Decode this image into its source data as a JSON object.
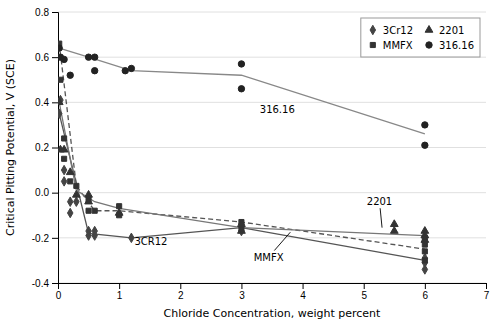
{
  "chart_data": {
    "type": "scatter",
    "xlabel": "Chloride Concentration, weight percent",
    "ylabel": "Critical Pitting Potential, V (SCE)",
    "xlim": [
      0,
      7
    ],
    "ylim": [
      -0.4,
      0.8
    ],
    "xticks": [
      0,
      1,
      2,
      3,
      4,
      5,
      6,
      7
    ],
    "yticks": [
      -0.4,
      -0.2,
      {
        "value": 0,
        "label": "0.0"
      },
      0.2,
      0.4,
      0.6,
      0.8
    ],
    "grid": true,
    "legend": "upper right",
    "series": [
      {
        "name": "3Cr12",
        "type": "scatter",
        "marker": "diamond",
        "color": "#444444",
        "x": [
          0.02,
          0.04,
          0.1,
          0.1,
          0.2,
          0.2,
          0.3,
          0.5,
          0.5,
          0.6,
          0.6,
          1.2,
          3.0,
          3.0,
          6.0,
          6.0,
          6.0
        ],
        "values": [
          0.35,
          0.41,
          0.1,
          0.05,
          -0.04,
          -0.09,
          -0.04,
          -0.17,
          -0.19,
          -0.17,
          -0.19,
          -0.2,
          -0.14,
          -0.17,
          -0.29,
          -0.31,
          -0.34
        ]
      },
      {
        "type": "line",
        "line_style": "solid",
        "color": "#555555",
        "x": [
          0.02,
          0.5,
          1.2,
          3.0,
          6.0
        ],
        "values": [
          0.35,
          -0.18,
          -0.2,
          -0.155,
          -0.3
        ]
      },
      {
        "name": "MMFX",
        "type": "scatter",
        "marker": "square",
        "color": "#333333",
        "x": [
          0.02,
          0.04,
          0.1,
          0.1,
          0.2,
          0.3,
          0.5,
          0.5,
          0.6,
          1.0,
          1.0,
          3.0,
          3.0,
          6.0,
          6.0,
          6.0,
          6.0
        ],
        "values": [
          0.66,
          0.5,
          0.24,
          0.15,
          0.05,
          0.03,
          -0.03,
          -0.08,
          -0.08,
          -0.06,
          -0.1,
          -0.13,
          -0.16,
          -0.2,
          -0.23,
          -0.26,
          -0.3
        ]
      },
      {
        "type": "line",
        "line_style": "dashed",
        "color": "#555555",
        "x": [
          0.02,
          0.3,
          0.6,
          1.0,
          3.0,
          6.0
        ],
        "values": [
          0.66,
          0.03,
          -0.08,
          -0.08,
          -0.13,
          -0.25
        ]
      },
      {
        "name": "2201",
        "type": "scatter",
        "marker": "triangle",
        "color": "#333333",
        "x": [
          0.02,
          0.04,
          0.1,
          0.2,
          0.3,
          0.5,
          0.5,
          1.0,
          3.0,
          3.0,
          5.5,
          5.5,
          6.0,
          6.0,
          6.0
        ],
        "values": [
          0.4,
          0.19,
          0.19,
          0.09,
          -0.01,
          -0.01,
          -0.04,
          -0.09,
          -0.14,
          -0.17,
          -0.14,
          -0.17,
          -0.17,
          -0.19,
          -0.21
        ]
      },
      {
        "type": "line",
        "line_style": "solid",
        "color": "#777777",
        "x": [
          0.02,
          0.3,
          0.6,
          1.0,
          3.0,
          6.0
        ],
        "values": [
          0.4,
          0.01,
          -0.04,
          -0.07,
          -0.155,
          -0.19
        ]
      },
      {
        "name": "316.16",
        "type": "scatter",
        "marker": "circle",
        "color": "#222222",
        "x": [
          0.02,
          0.04,
          0.1,
          0.2,
          0.5,
          0.6,
          0.6,
          1.1,
          1.2,
          3.0,
          3.0,
          6.0,
          6.0
        ],
        "values": [
          0.64,
          0.6,
          0.59,
          0.52,
          0.6,
          0.6,
          0.54,
          0.54,
          0.55,
          0.46,
          0.57,
          0.21,
          0.3
        ]
      },
      {
        "type": "line",
        "line_style": "solid",
        "color": "#888888",
        "x": [
          0.02,
          0.5,
          1.2,
          3.0,
          6.0
        ],
        "values": [
          0.64,
          0.6,
          0.54,
          0.52,
          0.26
        ]
      }
    ],
    "annotations": [
      {
        "text": "3CR12",
        "x": 1.25,
        "y": -0.215
      },
      {
        "text": "MMFX",
        "x": 3.2,
        "y": -0.285,
        "arrow_to": [
          3.8,
          -0.175
        ]
      },
      {
        "text": "2201",
        "x": 5.05,
        "y": -0.04,
        "arrow_to": [
          5.3,
          -0.155
        ]
      },
      {
        "text": "316.16",
        "x": 3.3,
        "y": 0.37
      }
    ]
  }
}
